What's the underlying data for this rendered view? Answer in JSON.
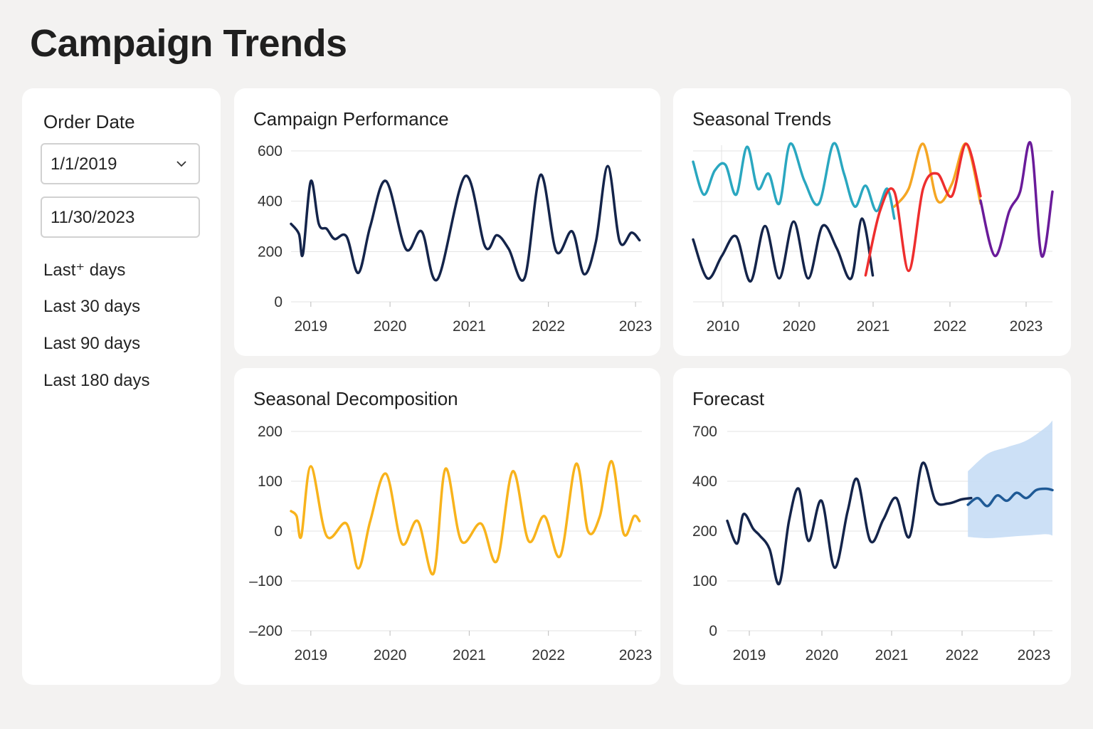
{
  "page": {
    "title": "Campaign Trends"
  },
  "filter": {
    "title": "Order Date",
    "start_date": "1/1/2019",
    "end_date": "11/30/2023",
    "presets": [
      "Last⁺ days",
      "Last 30 days",
      "Last 90 days",
      "Last 180 days"
    ]
  },
  "colors": {
    "navy": "#14244a",
    "teal": "#2aa7c0",
    "amber": "#f8b31c",
    "orange": "#f5a623",
    "red": "#ee2e2e",
    "magenta": "#d6336c",
    "purple": "#6a1b9a",
    "forecast_line": "#1f5a96",
    "forecast_band": "#c7ddf5",
    "grid": "#e3e3e3"
  },
  "chart_data": [
    {
      "title": "Campaign Performance",
      "type": "line",
      "x_ticks": [
        "2019",
        "2020",
        "2021",
        "2022",
        "2023"
      ],
      "y_ticks": [
        "600",
        "400",
        "200",
        "0"
      ],
      "ylim": [
        0,
        600
      ],
      "grid": true,
      "series": [
        {
          "color": "#14244a",
          "x": [
            2018.75,
            2018.85,
            2018.9,
            2019.0,
            2019.1,
            2019.2,
            2019.3,
            2019.45,
            2019.6,
            2019.75,
            2019.95,
            2020.2,
            2020.4,
            2020.6,
            2020.95,
            2021.2,
            2021.35,
            2021.5,
            2021.7,
            2021.9,
            2022.1,
            2022.3,
            2022.45,
            2022.6,
            2022.75,
            2022.9,
            2023.05,
            2023.15
          ],
          "y": [
            310,
            270,
            190,
            480,
            310,
            290,
            250,
            260,
            115,
            300,
            480,
            210,
            280,
            90,
            500,
            220,
            265,
            210,
            95,
            505,
            200,
            280,
            110,
            240,
            540,
            240,
            275,
            245
          ]
        }
      ]
    },
    {
      "title": "Seasonal Trends",
      "type": "line",
      "x_ticks": [
        "2010",
        "2020",
        "2021",
        "2022",
        "2023"
      ],
      "grid": true,
      "series": [
        {
          "color": "#2aa7c0",
          "x": [
            0.0,
            0.03,
            0.06,
            0.09,
            0.12,
            0.15,
            0.18,
            0.21,
            0.24,
            0.27,
            0.31,
            0.35,
            0.39,
            0.42,
            0.45,
            0.48,
            0.51,
            0.54,
            0.56
          ],
          "y": [
            0.88,
            0.66,
            0.82,
            0.86,
            0.66,
            0.98,
            0.7,
            0.8,
            0.6,
            1.0,
            0.75,
            0.6,
            1.0,
            0.8,
            0.58,
            0.72,
            0.55,
            0.7,
            0.5
          ]
        },
        {
          "color": "#14244a",
          "x": [
            0.0,
            0.04,
            0.08,
            0.12,
            0.16,
            0.2,
            0.24,
            0.28,
            0.32,
            0.36,
            0.4,
            0.44,
            0.47,
            0.5
          ],
          "y": [
            0.36,
            0.1,
            0.25,
            0.38,
            0.08,
            0.45,
            0.1,
            0.48,
            0.1,
            0.45,
            0.3,
            0.1,
            0.5,
            0.12
          ]
        },
        {
          "color": "#f5a623",
          "x": [
            0.56,
            0.6,
            0.64,
            0.68,
            0.72,
            0.76,
            0.8
          ],
          "y": [
            0.58,
            0.7,
            1.0,
            0.62,
            0.73,
            1.0,
            0.6
          ]
        },
        {
          "color": "#ee2e2e",
          "x": [
            0.48,
            0.52,
            0.56,
            0.6,
            0.64,
            0.68,
            0.72,
            0.76,
            0.8
          ],
          "y": [
            0.12,
            0.55,
            0.68,
            0.15,
            0.7,
            0.8,
            0.65,
            1.0,
            0.65
          ]
        },
        {
          "color": "#6a1b9a",
          "x": [
            0.8,
            0.84,
            0.88,
            0.91,
            0.94,
            0.97,
            1.0
          ],
          "y": [
            0.62,
            0.25,
            0.55,
            0.68,
            1.0,
            0.25,
            0.68
          ]
        }
      ]
    },
    {
      "title": "Seasonal Decomposition",
      "type": "line",
      "x_ticks": [
        "2019",
        "2020",
        "2021",
        "2022",
        "2023"
      ],
      "y_ticks": [
        "200",
        "100",
        "0",
        "–100",
        "–200"
      ],
      "ylim": [
        -200,
        200
      ],
      "grid": true,
      "series": [
        {
          "color": "#f8b31c",
          "x": [
            2018.75,
            2018.82,
            2018.88,
            2019.0,
            2019.2,
            2019.45,
            2019.6,
            2019.75,
            2019.95,
            2020.15,
            2020.35,
            2020.55,
            2020.7,
            2020.9,
            2021.15,
            2021.35,
            2021.55,
            2021.75,
            2021.95,
            2022.15,
            2022.35,
            2022.5,
            2022.65,
            2022.8,
            2022.95,
            2023.08,
            2023.15
          ],
          "y": [
            40,
            30,
            -10,
            130,
            -10,
            15,
            -75,
            20,
            115,
            -25,
            20,
            -85,
            125,
            -20,
            15,
            -60,
            120,
            -20,
            30,
            -50,
            135,
            0,
            30,
            140,
            -5,
            30,
            20
          ]
        }
      ]
    },
    {
      "title": "Forecast",
      "type": "line",
      "x_ticks": [
        "2019",
        "2020",
        "2021",
        "2022",
        "2023"
      ],
      "y_ticks": [
        "700",
        "400",
        "200",
        "100",
        "0"
      ],
      "grid": true,
      "series": [
        {
          "color": "#14244a",
          "x": [
            0.0,
            0.03,
            0.05,
            0.08,
            0.1,
            0.13,
            0.16,
            0.19,
            0.22,
            0.25,
            0.29,
            0.33,
            0.37,
            0.4,
            0.44,
            0.48,
            0.52,
            0.56,
            0.6,
            0.64,
            0.68,
            0.72,
            0.75
          ],
          "y": [
            0.55,
            0.38,
            0.6,
            0.49,
            0.44,
            0.34,
            0.08,
            0.55,
            0.79,
            0.4,
            0.7,
            0.2,
            0.62,
            0.86,
            0.4,
            0.56,
            0.72,
            0.43,
            0.98,
            0.7,
            0.68,
            0.71,
            0.72
          ]
        },
        {
          "color": "#1f5a96",
          "x": [
            0.74,
            0.77,
            0.8,
            0.83,
            0.86,
            0.89,
            0.92,
            0.95,
            0.98,
            1.0
          ],
          "y": [
            0.67,
            0.72,
            0.66,
            0.74,
            0.7,
            0.76,
            0.72,
            0.78,
            0.79,
            0.78
          ]
        }
      ],
      "band": {
        "x": [
          0.74,
          0.8,
          0.86,
          0.92,
          0.98,
          1.0
        ],
        "upper": [
          0.92,
          1.05,
          1.1,
          1.15,
          1.25,
          1.3
        ],
        "lower": [
          0.43,
          0.42,
          0.43,
          0.44,
          0.45,
          0.44
        ]
      }
    }
  ]
}
